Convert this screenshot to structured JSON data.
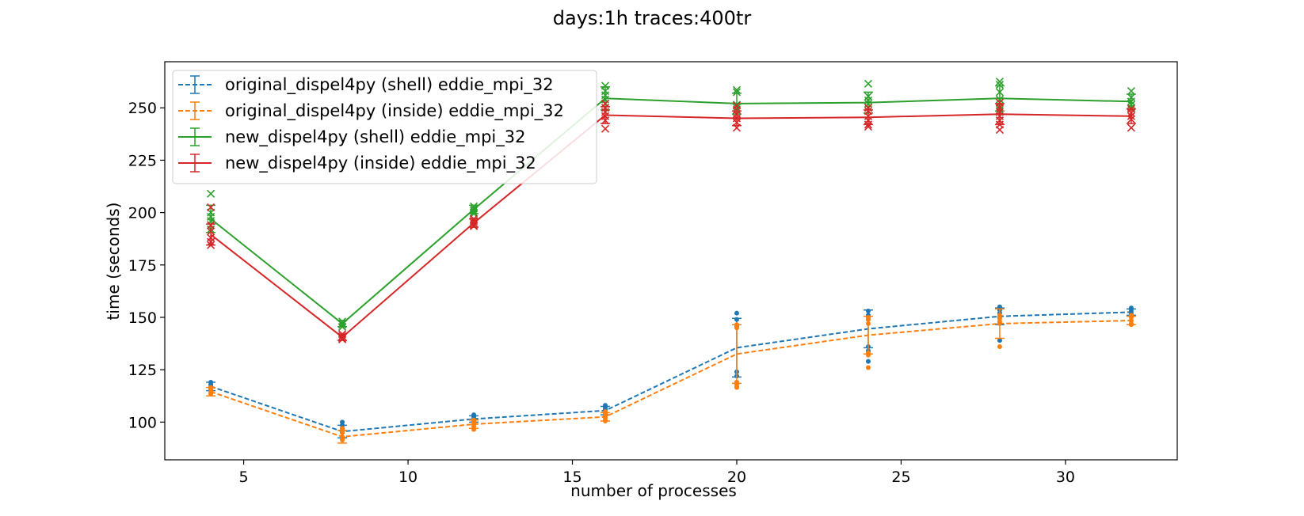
{
  "chart_data": {
    "type": "line",
    "title": "days:1h traces:400tr",
    "xlabel": "number of processes",
    "ylabel": "time (seconds)",
    "xlim": [
      2.6,
      33.4
    ],
    "ylim": [
      82,
      272
    ],
    "xticks": [
      5,
      10,
      15,
      20,
      25,
      30
    ],
    "yticks": [
      100,
      125,
      150,
      175,
      200,
      225,
      250
    ],
    "grid": false,
    "legend_position": "top-left",
    "series": [
      {
        "name": "original_dispel4py (shell) eddie_mpi_32",
        "color": "#1f77b4",
        "line_style": "dashed",
        "marker": "dot",
        "x": [
          4,
          8,
          12,
          16,
          20,
          24,
          28,
          32
        ],
        "mean": [
          117,
          95.5,
          101.5,
          105.5,
          135.5,
          144.5,
          150.5,
          152.5
        ],
        "err": [
          2,
          3,
          1.5,
          2,
          14,
          9,
          4,
          1.5
        ],
        "samples": [
          [
            119,
            118,
            117,
            116,
            115.5
          ],
          [
            100,
            98.5,
            97,
            96,
            95
          ],
          [
            103.5,
            102.5,
            101.5,
            100.5
          ],
          [
            108,
            107,
            106,
            105,
            104
          ],
          [
            152,
            149,
            146,
            124,
            122,
            119
          ],
          [
            153,
            151,
            149,
            136,
            129,
            134
          ],
          [
            155,
            153.5,
            152,
            150,
            139
          ],
          [
            154.5,
            153.5,
            152.5,
            151.5
          ]
        ]
      },
      {
        "name": "original_dispel4py (inside) eddie_mpi_32",
        "color": "#ff7f0e",
        "line_style": "dashed",
        "marker": "dot",
        "x": [
          4,
          8,
          12,
          16,
          20,
          24,
          28,
          32
        ],
        "mean": [
          114.5,
          93,
          99,
          102.5,
          132.5,
          141.5,
          147,
          148.5
        ],
        "err": [
          2,
          3,
          2,
          2,
          14,
          9,
          7,
          2
        ],
        "samples": [
          [
            116.5,
            115.5,
            114.5,
            113.5
          ],
          [
            97,
            95,
            93,
            92,
            91.5
          ],
          [
            101,
            100,
            99,
            98,
            96.5
          ],
          [
            105,
            104,
            103,
            102,
            101,
            100.5
          ],
          [
            146.5,
            145,
            119,
            118,
            117,
            116.5
          ],
          [
            150,
            149,
            147,
            133,
            132,
            126
          ],
          [
            151,
            149.5,
            148,
            147,
            136
          ],
          [
            151,
            150,
            148.5,
            147,
            146.5
          ]
        ]
      },
      {
        "name": "new_dispel4py (shell) eddie_mpi_32",
        "color": "#2ca02c",
        "line_style": "solid",
        "marker": "x",
        "x": [
          4,
          8,
          12,
          16,
          20,
          24,
          28,
          32
        ],
        "mean": [
          197,
          147,
          201.5,
          254.5,
          252,
          252.5,
          254.5,
          253
        ],
        "err": [
          6.5,
          1.5,
          2,
          5.5,
          5,
          5,
          6,
          3.5
        ],
        "samples": [
          [
            209,
            200,
            198,
            196,
            194,
            192
          ],
          [
            148,
            147,
            146.5,
            145.5
          ],
          [
            203,
            202,
            201,
            200,
            199.5
          ],
          [
            260.5,
            258,
            256,
            254,
            252,
            250
          ],
          [
            258.5,
            257.5,
            251.5,
            250,
            249,
            247
          ],
          [
            261.5,
            255.5,
            253.5,
            252,
            250,
            248.5
          ],
          [
            262.5,
            261,
            257.5,
            254,
            251,
            249
          ],
          [
            258,
            255,
            253,
            251.5,
            250
          ]
        ]
      },
      {
        "name": "new_dispel4py (inside) eddie_mpi_32",
        "color": "#d62728",
        "line_style": "solid",
        "marker": "x",
        "x": [
          4,
          8,
          12,
          16,
          20,
          24,
          28,
          32
        ],
        "mean": [
          189.5,
          140.5,
          195,
          246.5,
          245,
          245.5,
          247,
          246
        ],
        "err": [
          5,
          1.5,
          2,
          4,
          3.5,
          3.5,
          5,
          3.5
        ],
        "samples": [
          [
            202.5,
            194,
            191,
            188,
            186,
            184.5
          ],
          [
            142,
            141,
            140,
            139.5
          ],
          [
            197,
            196,
            195,
            194,
            193.5
          ],
          [
            252,
            250,
            248,
            246,
            244,
            240
          ],
          [
            251,
            249,
            247,
            245,
            243,
            240.5
          ],
          [
            250,
            248.5,
            246,
            244,
            242,
            241
          ],
          [
            252.5,
            250,
            248,
            246,
            244,
            242,
            239.5
          ],
          [
            249.5,
            247.5,
            246,
            244.5,
            240.5
          ]
        ]
      }
    ]
  }
}
